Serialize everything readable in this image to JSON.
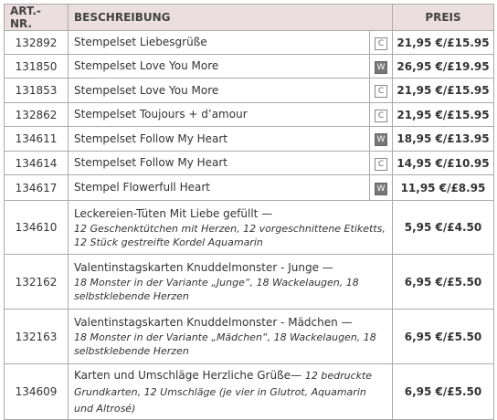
{
  "table": {
    "header": [
      "ART.-NR.",
      "BESCHREIBUNG",
      "PREIS"
    ],
    "rows": [
      {
        "art": "132892",
        "title": "Stempelset Liebesgrüße",
        "code": "C",
        "price": "21,95 €/£15.95"
      },
      {
        "art": "131850",
        "title": "Stempelset Love You More",
        "code": "W",
        "price": "26,95 €/£19.95"
      },
      {
        "art": "131853",
        "title": "Stempelset Love You More",
        "code": "C",
        "price": "21,95 €/£15.95"
      },
      {
        "art": "132862",
        "title": "Stempelset Toujours + d’amour",
        "code": "C",
        "price": "21,95 €/£15.95"
      },
      {
        "art": "134611",
        "title": "Stempelset Follow My Heart",
        "code": "W",
        "price": "18,95 €/£13.95"
      },
      {
        "art": "134614",
        "title": "Stempelset Follow My Heart",
        "code": "C",
        "price": "14,95 €/£10.95"
      },
      {
        "art": "134617",
        "title": "Stempel Flowerfull Heart",
        "code": "W",
        "price": "11,95 €/£8.95"
      },
      {
        "art": "134610",
        "title": "Leckereien-Tüten Mit Liebe gefüllt —",
        "detail": "12 Geschenktütchen mit Herzen, 12 vorgeschnittene Etiketts, 12 Stück gestreifte Kordel Aquamarin",
        "price": "5,95 €/£4.50"
      },
      {
        "art": "132162",
        "title": "Valentinstagskarten Knuddelmonster - Junge —",
        "detail": "18 Monster in der Variante „Junge“, 18 Wackelaugen, 18 selbstklebende Herzen",
        "price": "6,95 €/£5.50"
      },
      {
        "art": "132163",
        "title": "Valentinstagskarten Knuddelmonster - Mädchen —",
        "detail": "18 Monster in der Variante „Mädchen“, 18 Wackelaugen, 18 selbstklebende Herzen",
        "price": "6,95 €/£5.50"
      },
      {
        "art": "134609",
        "title": "Karten und Umschläge Herzliche Grüße—",
        "detail": "12 bedruckte Grundkarten, 12 Umschläge (je vier in Glutrot, Aquamarin und Altrosé)",
        "price": "6,95 €/£5.50"
      }
    ]
  }
}
